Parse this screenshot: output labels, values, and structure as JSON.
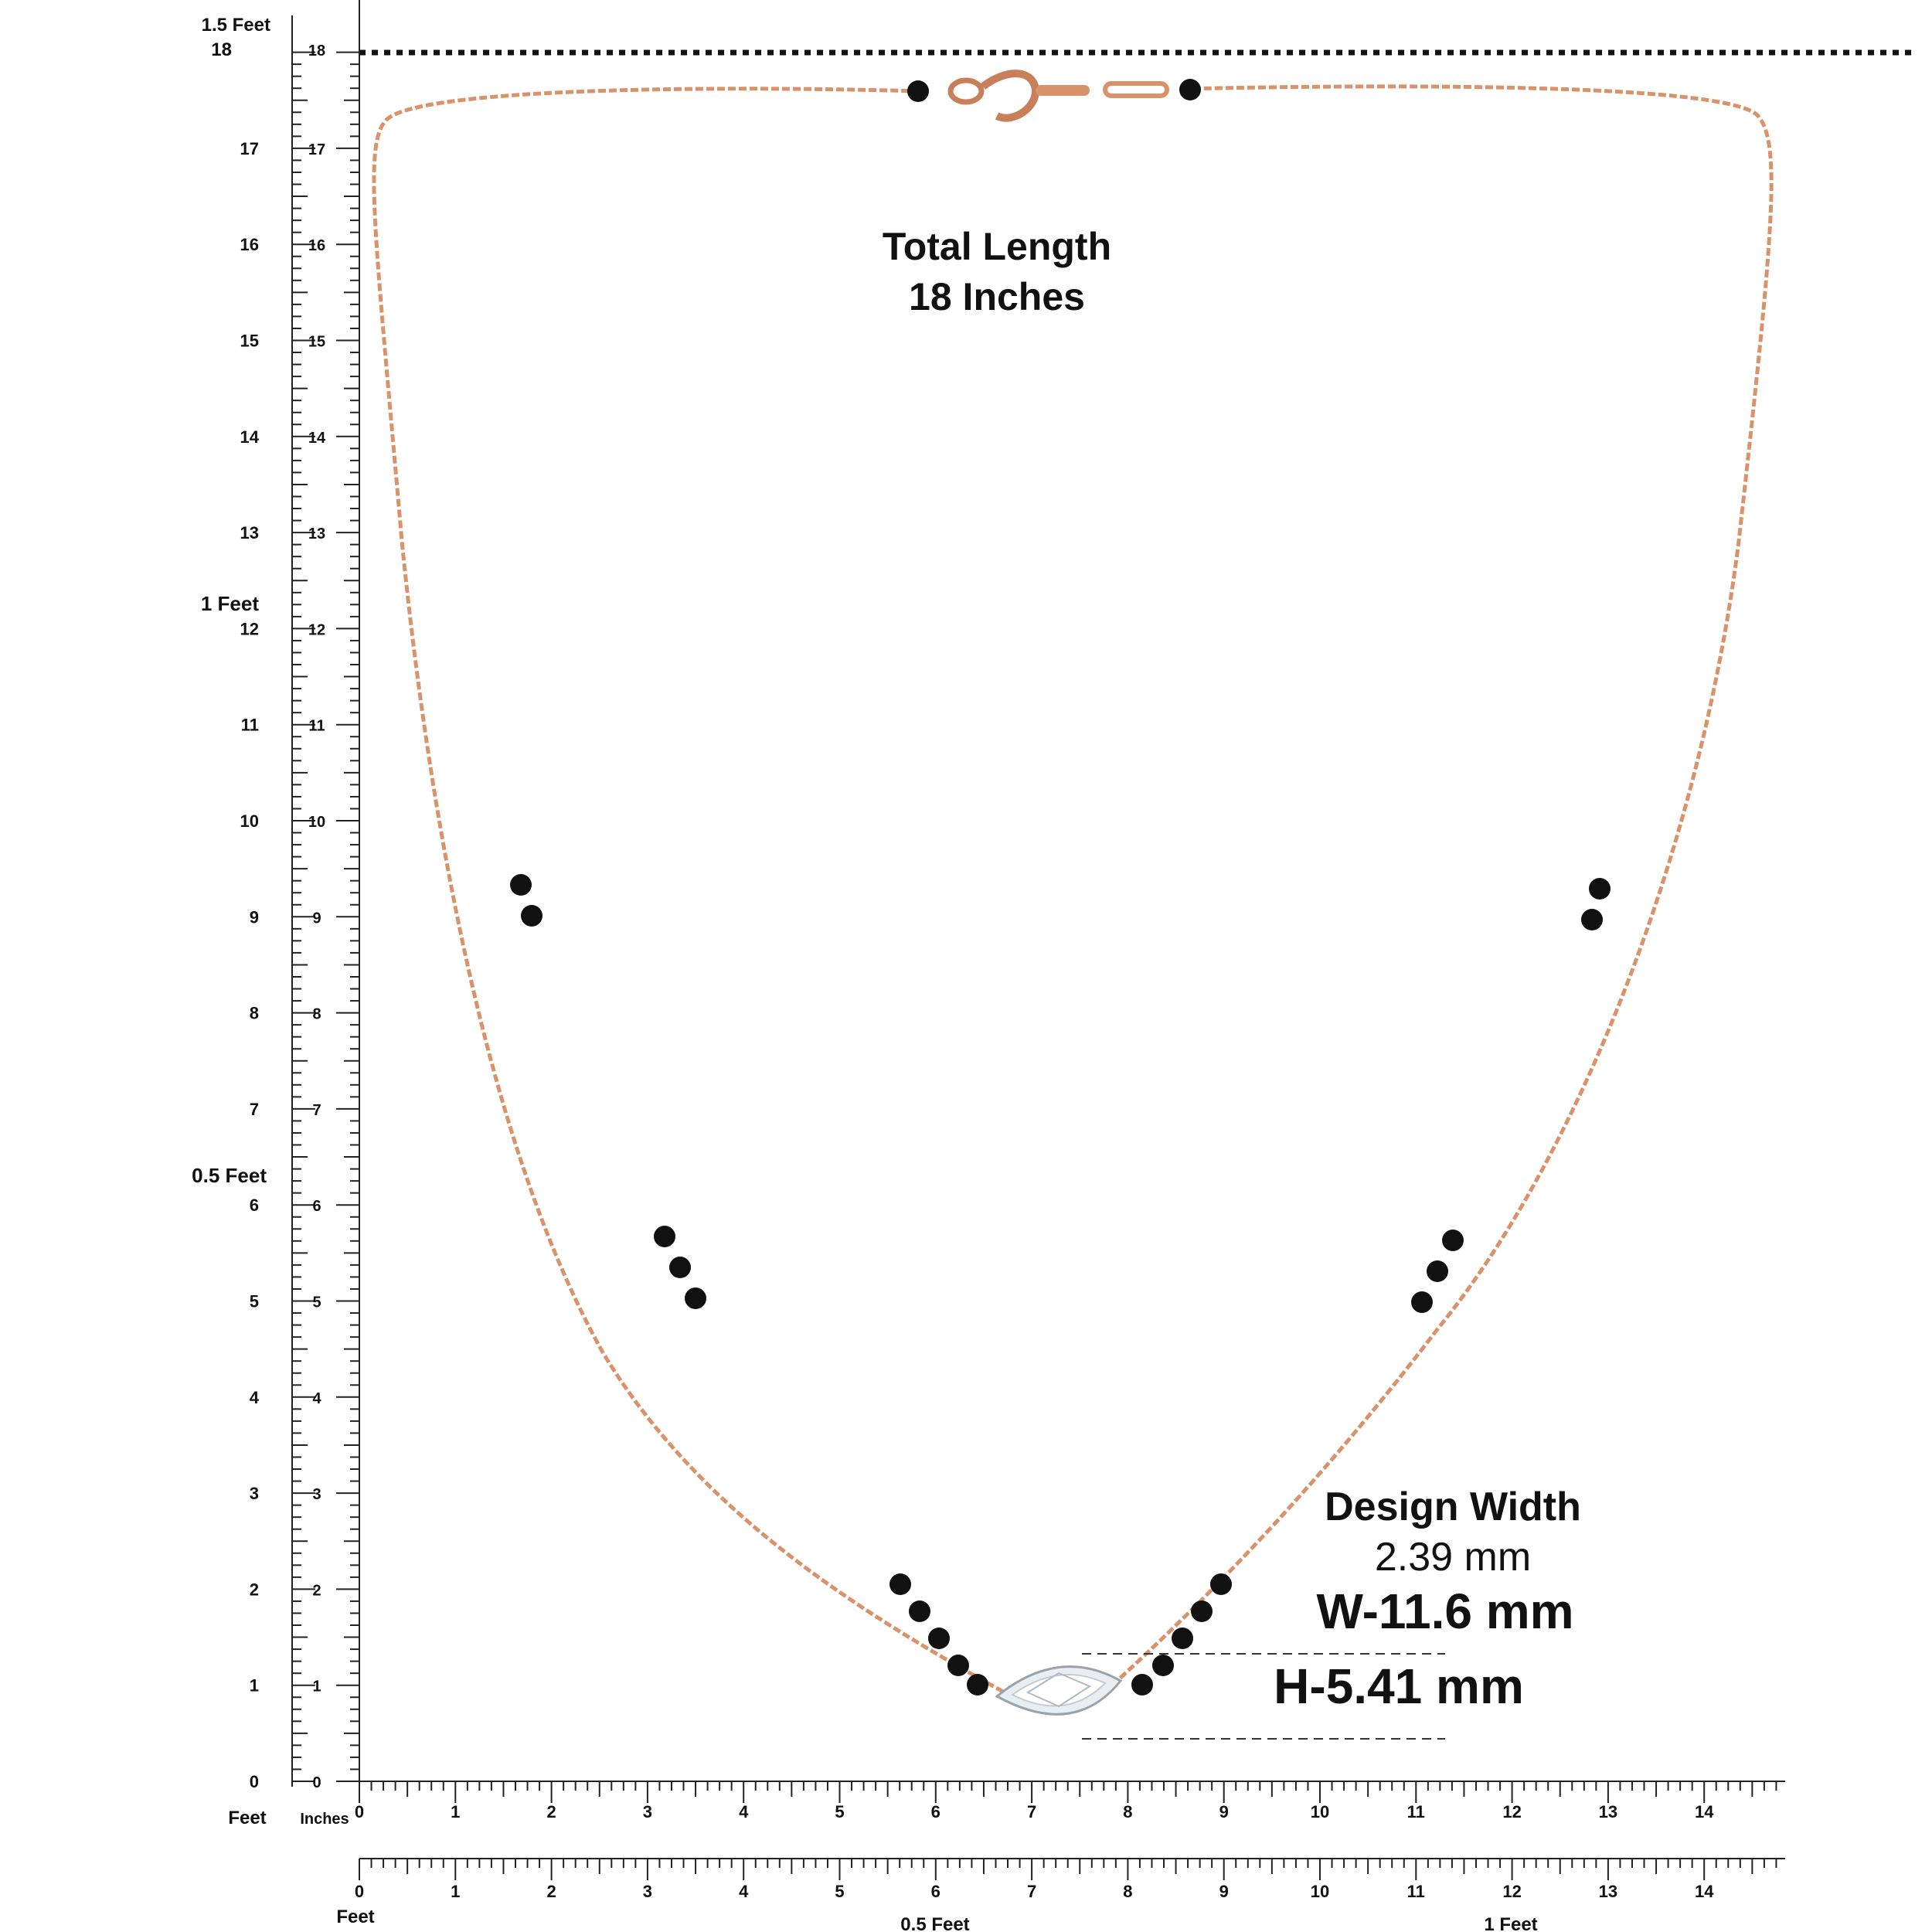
{
  "colors": {
    "chain": "#d9936b",
    "bead": "#111111",
    "ruler": "#222222",
    "stone": "#eef2f6"
  },
  "product": {
    "total_length_title": "Total Length",
    "total_length_value": "18 Inches",
    "design_width_title": "Design Width",
    "design_width_value": "2.39 mm",
    "width": "W-11.6 mm",
    "height": "H-5.41 mm"
  },
  "vertical_ruler": {
    "inch_labels": [
      "0",
      "1",
      "2",
      "3",
      "4",
      "5",
      "6",
      "7",
      "8",
      "9",
      "10",
      "11",
      "12",
      "13",
      "14",
      "15",
      "16",
      "17",
      "18"
    ],
    "feet_labels": {
      "0": "0",
      "6": "0.5 Feet",
      "12": "1 Feet",
      "18": "1.5 Feet"
    },
    "bottom_feet_caption": "Feet",
    "inches_caption": "Inches"
  },
  "horizontal_ruler_top": {
    "inch_labels": [
      "0",
      "1",
      "2",
      "3",
      "4",
      "5",
      "6",
      "7",
      "8",
      "9",
      "10",
      "11",
      "12",
      "13",
      "14"
    ]
  },
  "horizontal_ruler_bottom": {
    "inch_labels": [
      "0",
      "1",
      "2",
      "3",
      "4",
      "5",
      "6",
      "7",
      "8",
      "9",
      "10",
      "11",
      "12",
      "13",
      "14"
    ],
    "feet_caption": "Feet",
    "half_foot": "0.5 Feet",
    "one_foot": "1 Feet"
  }
}
